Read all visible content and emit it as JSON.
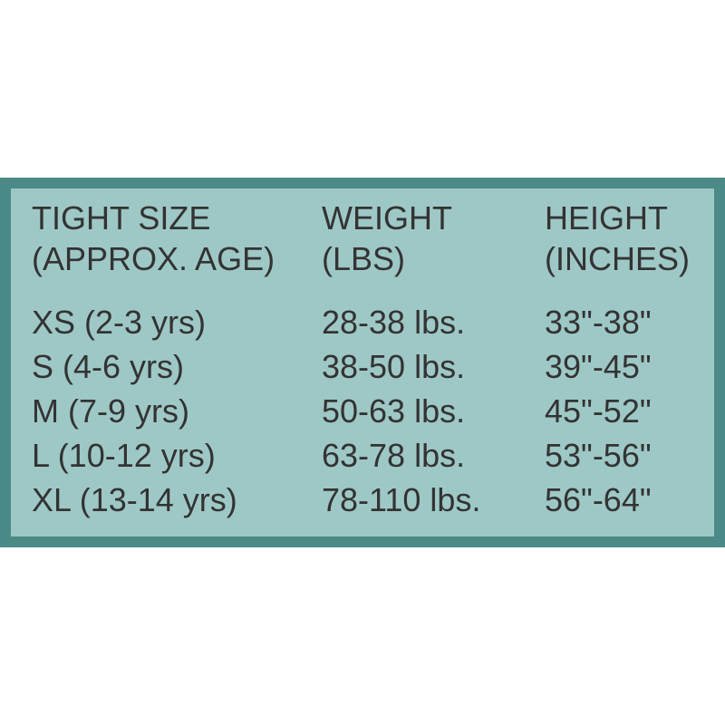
{
  "table": {
    "header": [
      [
        "TIGHT SIZE",
        "(APPROX. AGE)"
      ],
      [
        "WEIGHT",
        "(LBS)"
      ],
      [
        "HEIGHT",
        "(INCHES)"
      ]
    ],
    "rows": [
      [
        "XS (2-3 yrs)",
        "28-38 lbs.",
        "33\"-38\""
      ],
      [
        "S (4-6 yrs)",
        "38-50 lbs.",
        "39\"-45\""
      ],
      [
        "M (7-9 yrs)",
        "50-63 lbs.",
        "45\"-52\""
      ],
      [
        "L (10-12 yrs)",
        "63-78 lbs.",
        "53\"-56\""
      ],
      [
        "XL (13-14 yrs)",
        "78-110 lbs.",
        "56\"-64\""
      ]
    ]
  }
}
